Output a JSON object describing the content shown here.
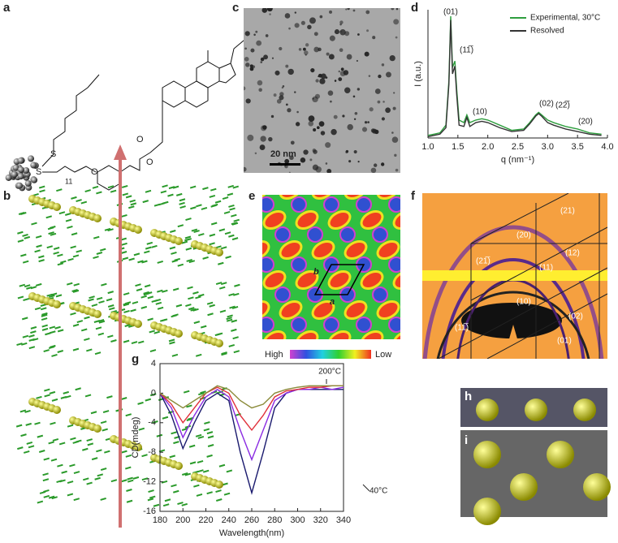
{
  "panel_labels": [
    "a",
    "b",
    "c",
    "d",
    "e",
    "f",
    "g",
    "h",
    "i"
  ],
  "panel_a": {
    "atoms": [
      "S",
      "S",
      "O",
      "O",
      "O"
    ],
    "repeat": "11"
  },
  "panel_c": {
    "scale_bar": "20 nm"
  },
  "panel_e": {
    "vectors": [
      "a",
      "b"
    ],
    "colorbar": [
      "High",
      "Low"
    ]
  },
  "panel_f": {
    "reflections": [
      "(21)",
      "(20)",
      "(12)",
      "(21̅)",
      "(11)",
      "(10)",
      "(02)",
      "(11̅)",
      "(01)"
    ]
  },
  "chart_data": [
    {
      "type": "line",
      "xlabel": "q (nm⁻¹)",
      "ylabel": "I (a.u.)",
      "x": [
        1.0,
        1.1,
        1.2,
        1.3,
        1.35,
        1.38,
        1.41,
        1.45,
        1.48,
        1.52,
        1.6,
        1.65,
        1.7,
        1.8,
        1.9,
        2.0,
        2.2,
        2.4,
        2.6,
        2.7,
        2.8,
        2.85,
        2.9,
        3.0,
        3.1,
        3.3,
        3.5,
        3.7,
        3.9
      ],
      "series": [
        {
          "name": "Experimental, 30°C",
          "color": "#2e9e3e",
          "values": [
            2,
            3,
            4,
            10,
            45,
            95,
            55,
            60,
            38,
            14,
            12,
            18,
            12,
            14,
            15,
            14,
            10,
            6,
            7,
            12,
            18,
            20,
            18,
            14,
            12,
            9,
            7,
            4,
            3
          ]
        },
        {
          "name": "Resolved",
          "color": "#333333",
          "values": [
            1,
            2,
            3,
            8,
            42,
            92,
            50,
            56,
            34,
            10,
            9,
            16,
            9,
            12,
            13,
            12,
            8,
            5,
            6,
            11,
            17,
            19,
            17,
            12,
            10,
            7,
            5,
            3,
            2
          ]
        }
      ],
      "annotations": [
        "(01)",
        "(11̅)",
        "(10)",
        "(02)",
        "(22̅)",
        "(20)"
      ],
      "legend": "upper right",
      "xlim": [
        1.0,
        4.0
      ],
      "ylim": [
        0,
        100
      ],
      "xticks": [
        {
          "value": 1,
          "label": "1.0"
        },
        1.5,
        {
          "value": 2,
          "label": "2.0"
        },
        2.5,
        {
          "value": 3,
          "label": "3.0"
        },
        3.5,
        {
          "value": 4,
          "label": "4.0"
        }
      ]
    },
    {
      "type": "line",
      "xlabel": "Wavelength(nm)",
      "ylabel": "CD(mdeg)",
      "x": [
        180,
        190,
        200,
        210,
        220,
        230,
        240,
        250,
        260,
        270,
        280,
        290,
        300,
        310,
        320,
        330,
        340
      ],
      "series": [
        {
          "color": "#1a1a6e",
          "values": [
            0,
            -3,
            -7.5,
            -4,
            -1,
            0,
            -1,
            -8,
            -13.5,
            -8,
            -2,
            0,
            0.5,
            0.5,
            0.5,
            0.5,
            0.5
          ]
        },
        {
          "color": "#8a2be2",
          "values": [
            0,
            -2,
            -6,
            -3,
            -0.5,
            0.5,
            -0.5,
            -5,
            -9,
            -5,
            -1,
            0,
            0.5,
            0.5,
            0.8,
            0.5,
            0.8
          ]
        },
        {
          "color": "#e0303a",
          "values": [
            0,
            -1.5,
            -4,
            -2,
            0,
            0.8,
            0,
            -3,
            -5,
            -3,
            -0.5,
            0.3,
            0.5,
            0.8,
            0.8,
            1,
            1
          ]
        },
        {
          "color": "#8b8b3a",
          "values": [
            0,
            -1,
            -2,
            -1,
            0,
            1,
            0.5,
            -1,
            -2,
            -1.5,
            0,
            0.5,
            0.8,
            1,
            1,
            1,
            1
          ]
        }
      ],
      "annotations": [
        "200°C",
        "40°C"
      ],
      "xlim": [
        180,
        340
      ],
      "ylim": [
        -16,
        4
      ],
      "xticks": [
        180,
        200,
        220,
        240,
        260,
        280,
        300,
        320,
        340
      ],
      "yticks": [
        -16,
        -12,
        -8,
        -4,
        0,
        4
      ]
    }
  ]
}
